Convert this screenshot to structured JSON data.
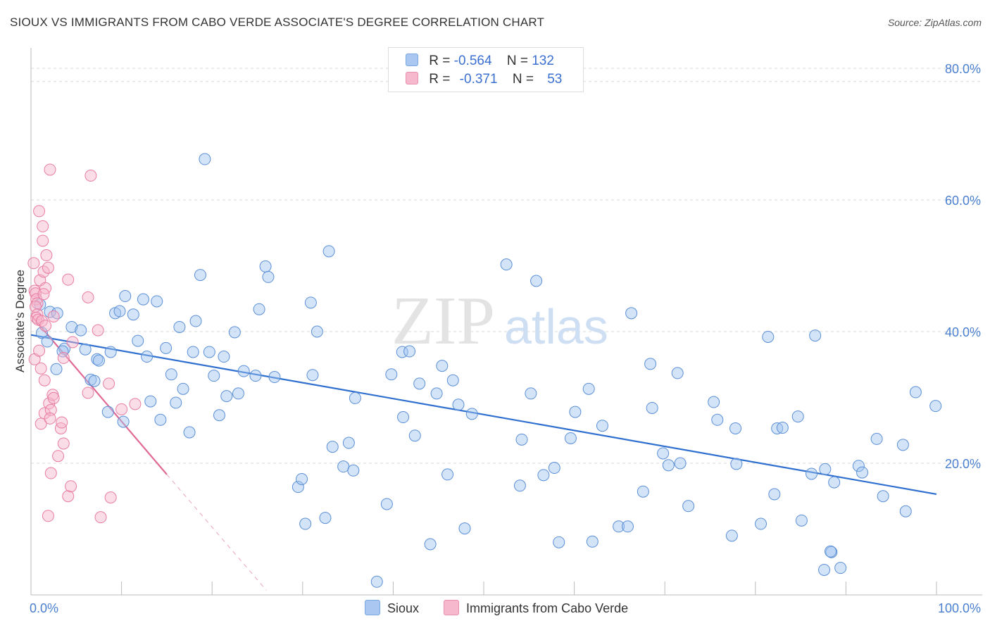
{
  "title": "SIOUX VS IMMIGRANTS FROM CABO VERDE ASSOCIATE'S DEGREE CORRELATION CHART",
  "source": "Source: ZipAtlas.com",
  "watermark": {
    "zip": "ZIP",
    "atlas": "atlas"
  },
  "legend": {
    "rows": [
      {
        "r_label": "R =",
        "r_value": "-0.564",
        "n_label": "N =",
        "n_value": "132",
        "color": "#a9c7f0"
      },
      {
        "r_label": "R =",
        "r_value": "-0.371",
        "n_label": "N =",
        "n_value": "53",
        "color": "#f6b8cc"
      }
    ]
  },
  "bottom_legend": {
    "sioux": "Sioux",
    "cabo": "Immigrants from Cabo Verde"
  },
  "chart_data": {
    "type": "scatter",
    "title": "SIOUX VS IMMIGRANTS FROM CABO VERDE ASSOCIATE'S DEGREE CORRELATION CHART",
    "xlabel": "",
    "ylabel": "Associate's Degree",
    "xlim": [
      0,
      100
    ],
    "ylim": [
      0,
      80
    ],
    "x_tick_labels": [
      "0.0%",
      "100.0%"
    ],
    "y_tick_labels": [
      "20.0%",
      "40.0%",
      "60.0%",
      "80.0%"
    ],
    "y_ticks": [
      20,
      40,
      60,
      80
    ],
    "colors": {
      "sioux": "#5b8fd6",
      "sioux_fill": "rgba(160,195,240,0.45)",
      "sioux_line": "#2f6fcf",
      "cabo": "#e87ca3",
      "cabo_fill": "rgba(246,180,202,0.45)",
      "cabo_line": "#e06a95"
    },
    "series": [
      {
        "name": "Sioux",
        "trend": {
          "x": [
            0,
            100
          ],
          "y": [
            39.5,
            15.3
          ]
        },
        "points": [
          [
            1,
            44.1
          ],
          [
            1.2,
            39.8
          ],
          [
            1.8,
            38.5
          ],
          [
            2.1,
            43
          ],
          [
            2.9,
            42.8
          ],
          [
            2.8,
            34.3
          ],
          [
            3.7,
            37.4
          ],
          [
            3.5,
            37
          ],
          [
            4.5,
            40.7
          ],
          [
            5.5,
            40.2
          ],
          [
            6,
            37.3
          ],
          [
            6.6,
            32.7
          ],
          [
            7,
            32.5
          ],
          [
            7.3,
            35.8
          ],
          [
            7.5,
            35.6
          ],
          [
            8.5,
            27.8
          ],
          [
            8.8,
            36.9
          ],
          [
            9.3,
            42.8
          ],
          [
            9.8,
            43.1
          ],
          [
            10.2,
            26.3
          ],
          [
            10.4,
            45.4
          ],
          [
            11.3,
            42.6
          ],
          [
            11.8,
            38.6
          ],
          [
            12.4,
            44.9
          ],
          [
            12.8,
            36.2
          ],
          [
            13.2,
            29.4
          ],
          [
            13.9,
            44.6
          ],
          [
            14.3,
            26.6
          ],
          [
            14.9,
            37.5
          ],
          [
            15.5,
            33.5
          ],
          [
            16,
            29.2
          ],
          [
            16.4,
            40.7
          ],
          [
            16.8,
            31.3
          ],
          [
            17.5,
            24.7
          ],
          [
            17.9,
            36.9
          ],
          [
            18.2,
            41.6
          ],
          [
            18.7,
            48.6
          ],
          [
            19.2,
            66.2
          ],
          [
            19.7,
            36.9
          ],
          [
            20.2,
            33.3
          ],
          [
            20.8,
            27.3
          ],
          [
            21.3,
            36.2
          ],
          [
            21.6,
            30.2
          ],
          [
            22.5,
            39.9
          ],
          [
            22.9,
            30.6
          ],
          [
            23.5,
            34
          ],
          [
            24.8,
            33.3
          ],
          [
            25.2,
            43.4
          ],
          [
            25.9,
            49.9
          ],
          [
            26.2,
            48.3
          ],
          [
            26.9,
            33.1
          ],
          [
            29.5,
            16.4
          ],
          [
            29.9,
            17.6
          ],
          [
            30.3,
            10.8
          ],
          [
            30.9,
            44.4
          ],
          [
            31.1,
            33.4
          ],
          [
            31.6,
            40
          ],
          [
            32.5,
            11.7
          ],
          [
            32.9,
            52.2
          ],
          [
            33.3,
            22.5
          ],
          [
            34.5,
            19.5
          ],
          [
            35.1,
            23.1
          ],
          [
            35.6,
            18.9
          ],
          [
            35.8,
            29.9
          ],
          [
            39.3,
            13.8
          ],
          [
            39.8,
            33.5
          ],
          [
            41,
            36.9
          ],
          [
            41.1,
            27
          ],
          [
            41.8,
            37
          ],
          [
            42.4,
            24.2
          ],
          [
            42.9,
            32.1
          ],
          [
            44.1,
            7.7
          ],
          [
            44.8,
            30.6
          ],
          [
            45.4,
            34.8
          ],
          [
            46,
            18.3
          ],
          [
            46.6,
            32.6
          ],
          [
            47.2,
            28.9
          ],
          [
            47.9,
            10.1
          ],
          [
            48.7,
            27.5
          ],
          [
            52.5,
            50.2
          ],
          [
            54,
            16.6
          ],
          [
            54.2,
            23.6
          ],
          [
            55.2,
            30.6
          ],
          [
            55.8,
            47.7
          ],
          [
            56.6,
            18.2
          ],
          [
            57.8,
            19.3
          ],
          [
            59.6,
            23.8
          ],
          [
            60.1,
            27.8
          ],
          [
            61.6,
            31.3
          ],
          [
            62,
            8.1
          ],
          [
            63.1,
            25.7
          ],
          [
            64.9,
            10.4
          ],
          [
            65.9,
            10.4
          ],
          [
            66.3,
            42.8
          ],
          [
            67.6,
            15.7
          ],
          [
            68.4,
            35.1
          ],
          [
            68.6,
            28.4
          ],
          [
            69.8,
            21.5
          ],
          [
            70.4,
            19.7
          ],
          [
            71.4,
            33.7
          ],
          [
            71.7,
            20
          ],
          [
            72.6,
            13.5
          ],
          [
            75.4,
            29.3
          ],
          [
            75.8,
            26.6
          ],
          [
            77.4,
            9
          ],
          [
            77.8,
            25.3
          ],
          [
            77.9,
            19.9
          ],
          [
            80.6,
            10.8
          ],
          [
            81.4,
            39.2
          ],
          [
            82.1,
            15.3
          ],
          [
            82.4,
            25.3
          ],
          [
            83,
            25.4
          ],
          [
            85.1,
            11.3
          ],
          [
            84.7,
            27.1
          ],
          [
            86.2,
            18.4
          ],
          [
            86.6,
            39.4
          ],
          [
            87.7,
            19.1
          ],
          [
            87.6,
            3.8
          ],
          [
            88.4,
            6.5
          ],
          [
            88.3,
            6.6
          ],
          [
            88.7,
            17.1
          ],
          [
            89.4,
            4.1
          ],
          [
            91.4,
            19.6
          ],
          [
            91.8,
            18.6
          ],
          [
            93.4,
            23.7
          ],
          [
            94.1,
            15
          ],
          [
            96.6,
            12.7
          ],
          [
            96.3,
            22.8
          ],
          [
            97.7,
            30.8
          ],
          [
            99.9,
            28.7
          ],
          [
            58.3,
            8
          ],
          [
            38.2,
            2
          ]
        ]
      },
      {
        "name": "Immigrants from Cabo Verde",
        "trend": {
          "x": [
            0,
            15
          ],
          "y": [
            42.5,
            18.3
          ]
        },
        "trend_ext": {
          "x": [
            15,
            26
          ],
          "y": [
            18.3,
            0.7
          ]
        },
        "points": [
          [
            0.3,
            50.4
          ],
          [
            0.4,
            46.2
          ],
          [
            0.5,
            45.8
          ],
          [
            0.6,
            44.9
          ],
          [
            0.7,
            44.3
          ],
          [
            0.5,
            43.8
          ],
          [
            0.7,
            42.6
          ],
          [
            0.6,
            42.1
          ],
          [
            0.8,
            41.8
          ],
          [
            0.4,
            35.8
          ],
          [
            1.5,
            32.6
          ],
          [
            0.9,
            37.1
          ],
          [
            1.1,
            34.4
          ],
          [
            1,
            47.8
          ],
          [
            1.4,
            49.1
          ],
          [
            0.9,
            58.3
          ],
          [
            1.3,
            56
          ],
          [
            1.3,
            53.8
          ],
          [
            1.7,
            51.6
          ],
          [
            1.9,
            49.7
          ],
          [
            1.6,
            46.6
          ],
          [
            1.4,
            45.7
          ],
          [
            1.2,
            41.6
          ],
          [
            1.6,
            40.9
          ],
          [
            1.1,
            26
          ],
          [
            1.5,
            27.6
          ],
          [
            2,
            29.1
          ],
          [
            2.4,
            30.4
          ],
          [
            2.5,
            29.9
          ],
          [
            2.2,
            28.1
          ],
          [
            2.1,
            26.8
          ],
          [
            2.2,
            18.5
          ],
          [
            1.9,
            12
          ],
          [
            2.1,
            64.6
          ],
          [
            2.5,
            42.3
          ],
          [
            3,
            21.1
          ],
          [
            3.3,
            25.3
          ],
          [
            3.4,
            26.2
          ],
          [
            3.6,
            23
          ],
          [
            3.6,
            36
          ],
          [
            4.1,
            15
          ],
          [
            4.1,
            47.9
          ],
          [
            4.4,
            16.5
          ],
          [
            4.6,
            38.4
          ],
          [
            6.3,
            45.2
          ],
          [
            6.3,
            30.7
          ],
          [
            6.6,
            63.7
          ],
          [
            7.4,
            40.2
          ],
          [
            7.7,
            11.8
          ],
          [
            8.6,
            32.1
          ],
          [
            8.8,
            14.8
          ],
          [
            10,
            28.2
          ],
          [
            11.5,
            29
          ]
        ]
      }
    ]
  }
}
